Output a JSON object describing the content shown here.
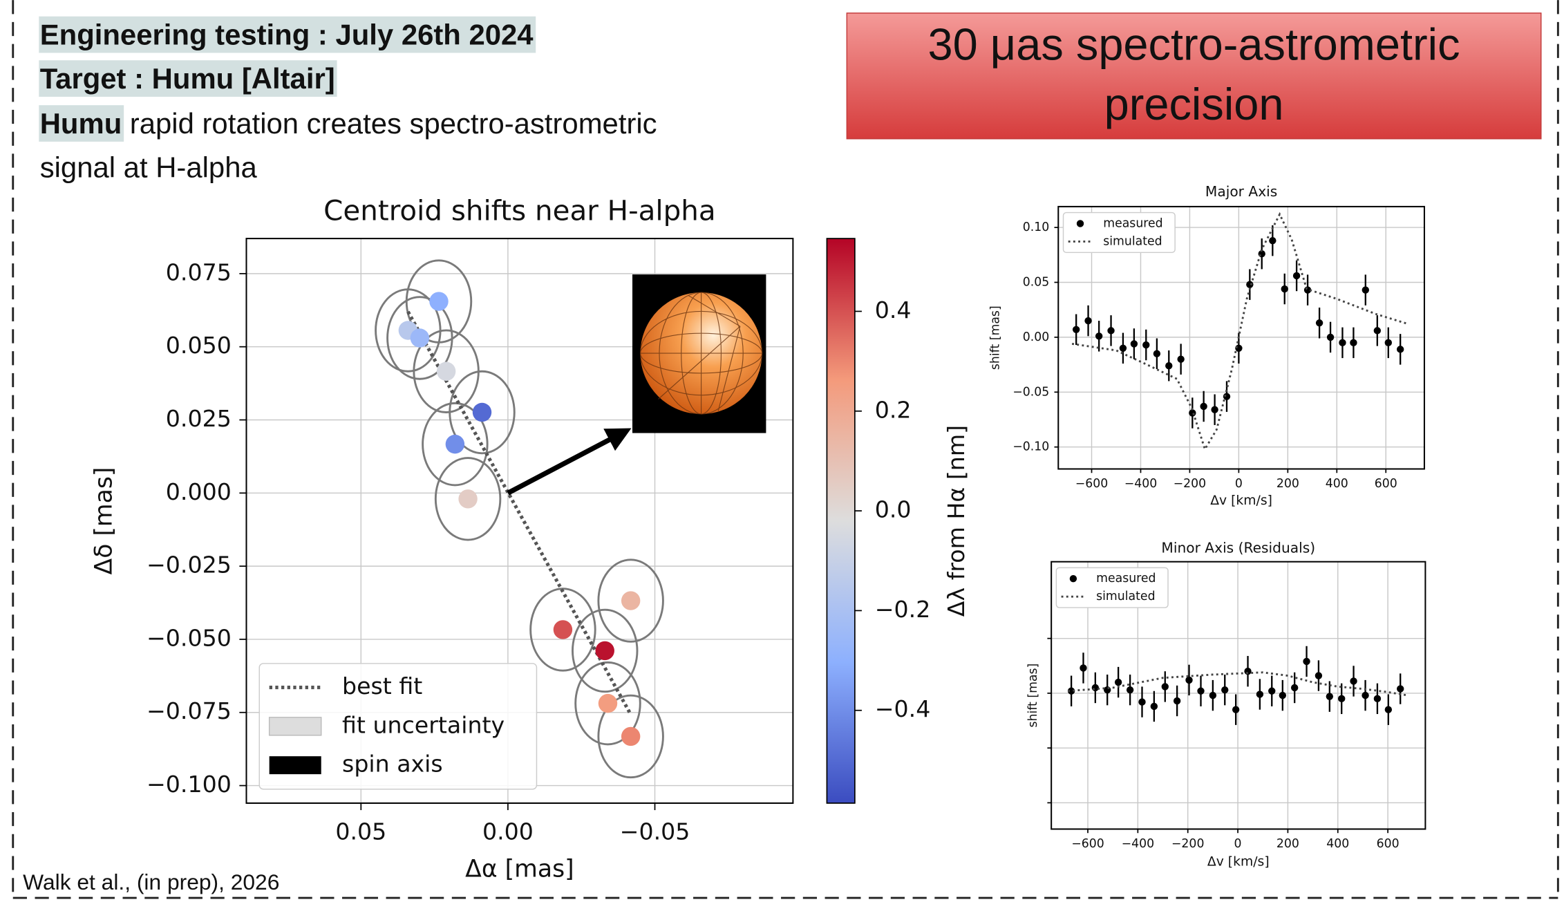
{
  "slide": {
    "heading": "Engineering testing : July 26th 2024",
    "target": "Target : Humu [Altair]",
    "description_bold": "Humu",
    "description": "rapid rotation creates spectro-astrometric",
    "description_line2": "signal at H-alpha",
    "callout": [
      "30 μas spectro-astrometric",
      "precision"
    ],
    "citation": "Walk et al., (in prep), 2026"
  },
  "chart_data": [
    {
      "type": "scatter",
      "title": "Centroid shifts near H-alpha",
      "xlabel": "Δα  [mas]",
      "ylabel": "Δδ [mas]",
      "xlim": [
        0.089,
        -0.097
      ],
      "ylim": [
        -0.106,
        0.087
      ],
      "xticks": [
        {
          "value": 0.05,
          "label": "0.05"
        },
        {
          "value": 0,
          "label": "0.00"
        },
        {
          "value": -0.05,
          "label": "−0.05"
        }
      ],
      "yticks": [
        0.075,
        {
          "value": 0.05,
          "label": "0.050"
        },
        0.025,
        {
          "value": 0,
          "label": "0.000"
        },
        {
          "value": -0.025,
          "label": "−0.025"
        },
        {
          "value": -0.05,
          "label": "−0.050"
        },
        {
          "value": -0.075,
          "label": "−0.075"
        },
        {
          "value": -0.1,
          "label": "−0.100"
        }
      ],
      "grid": true,
      "x": [
        0.0235,
        0.034,
        0.03,
        0.021,
        0.0088,
        0.018,
        0.0136,
        -0.0418,
        -0.0187,
        -0.033,
        -0.034,
        -0.0418
      ],
      "y": [
        0.0655,
        0.0556,
        0.053,
        0.0416,
        0.0276,
        0.0167,
        -0.002,
        -0.0368,
        -0.0467,
        -0.0539,
        -0.0719,
        -0.0832
      ],
      "c": [
        -0.3,
        -0.15,
        -0.25,
        -0.05,
        -0.5,
        -0.4,
        0.05,
        0.15,
        0.4,
        0.52,
        0.25,
        0.3
      ],
      "error_x": 0.011,
      "error_y": 0.014,
      "colormap": "coolwarm",
      "colorbar": {
        "label": "Δλ from Hα [nm]",
        "lim": [
          -0.586,
          0.546
        ],
        "ticks": [
          0.4,
          0.2,
          {
            "value": 0,
            "label": "0.0"
          },
          {
            "value": -0.2,
            "label": "−0.2"
          },
          {
            "value": -0.4,
            "label": "−0.4"
          }
        ]
      },
      "fit": {
        "name": "best fit",
        "color": "#555555",
        "x": [
          0.034,
          -0.0418
        ],
        "y": [
          0.062,
          -0.0757
        ]
      },
      "uncertainty": {
        "name": "fit uncertainty",
        "color": "#dddddd"
      },
      "spin_axis": {
        "name": "spin axis",
        "color": "#000000",
        "x": [
          0,
          -0.036
        ],
        "y": [
          0,
          0.019
        ]
      },
      "legend": "lower left"
    },
    {
      "type": "errorbar",
      "title": "Major Axis",
      "xlabel": "Δv [km/s]",
      "ylabel": "shift [mas]",
      "xlim": [
        -736,
        757
      ],
      "ylim": [
        -0.12,
        0.119
      ],
      "xticks": [
        {
          "value": -600,
          "label": "−600"
        },
        {
          "value": -400,
          "label": "−400"
        },
        {
          "value": -200,
          "label": "−200"
        },
        0,
        200,
        400,
        600
      ],
      "yticks": [
        {
          "value": 0.1,
          "label": "0.10"
        },
        0.05,
        {
          "value": 0,
          "label": "0.00"
        },
        {
          "value": -0.05,
          "label": "−0.05"
        },
        {
          "value": -0.1,
          "label": "−0.10"
        }
      ],
      "grid": true,
      "legend": "upper left",
      "series": [
        {
          "name": "measured",
          "color": "#000000",
          "x": [
            -663,
            -614,
            -570,
            -521,
            -472,
            -427,
            -378,
            -334,
            -285,
            -236,
            -189,
            -143,
            -98,
            -49,
            0,
            45,
            94,
            138,
            187,
            236,
            281,
            329,
            374,
            423,
            468,
            517,
            565,
            610,
            659
          ],
          "values": [
            0.007,
            0.015,
            0.001,
            0.006,
            -0.01,
            -0.006,
            -0.007,
            -0.015,
            -0.026,
            -0.02,
            -0.069,
            -0.063,
            -0.066,
            -0.054,
            -0.01,
            0.048,
            0.076,
            0.088,
            0.044,
            0.056,
            0.043,
            0.013,
            0,
            -0.005,
            -0.005,
            0.043,
            0.006,
            -0.005,
            -0.011
          ],
          "error": 0.014
        },
        {
          "name": "simulated",
          "color": "#444444",
          "x": [
            -680,
            -500,
            -374,
            -252,
            -191,
            -138,
            -90,
            -28,
            33,
            94,
            167,
            216,
            277,
            399,
            561,
            692
          ],
          "values": [
            -0.006,
            -0.012,
            -0.025,
            -0.038,
            -0.065,
            -0.102,
            -0.084,
            -0.029,
            0.035,
            0.08,
            0.112,
            0.089,
            0.044,
            0.035,
            0.021,
            0.012
          ]
        }
      ]
    },
    {
      "type": "errorbar",
      "title": "Minor Axis (Residuals)",
      "xlabel": "Δv [km/s]",
      "ylabel": "shift [mas]",
      "xlim": [
        -746,
        750
      ],
      "ylim": [
        -0.124,
        0.12
      ],
      "xticks": [
        {
          "value": -600,
          "label": "−600"
        },
        {
          "value": -400,
          "label": "−400"
        },
        {
          "value": -200,
          "label": "−200"
        },
        0,
        200,
        400,
        600
      ],
      "yticks": [
        0.05,
        0,
        -0.05,
        -0.1
      ],
      "ytick_labels": false,
      "grid": true,
      "legend": "upper left",
      "series": [
        {
          "name": "measured",
          "color": "#000000",
          "x": [
            -666,
            -618,
            -570,
            -522,
            -478,
            -431,
            -383,
            -335,
            -291,
            -243,
            -195,
            -148,
            -100,
            -52,
            -8,
            40,
            88,
            136,
            179,
            227,
            275,
            323,
            367,
            415,
            463,
            510,
            558,
            602,
            650
          ],
          "values": [
            0.002,
            0.023,
            0.005,
            0.003,
            0.01,
            0.003,
            -0.008,
            -0.012,
            0.006,
            -0.007,
            0.012,
            0.002,
            -0.002,
            0.003,
            -0.015,
            0.02,
            -0.001,
            0.002,
            -0.002,
            0.005,
            0.029,
            0.016,
            -0.003,
            -0.005,
            0.011,
            -0.002,
            -0.005,
            -0.015,
            0.004
          ],
          "error": 0.014
        },
        {
          "name": "simulated",
          "color": "#444444",
          "x": [
            -680,
            -500,
            -300,
            -100,
            0,
            100,
            200,
            300,
            400,
            500,
            600,
            680
          ],
          "values": [
            0.002,
            0.005,
            0.014,
            0.017,
            0.018,
            0.019,
            0.016,
            0.01,
            0.006,
            0.004,
            0.001,
            -0.002
          ]
        }
      ]
    }
  ]
}
